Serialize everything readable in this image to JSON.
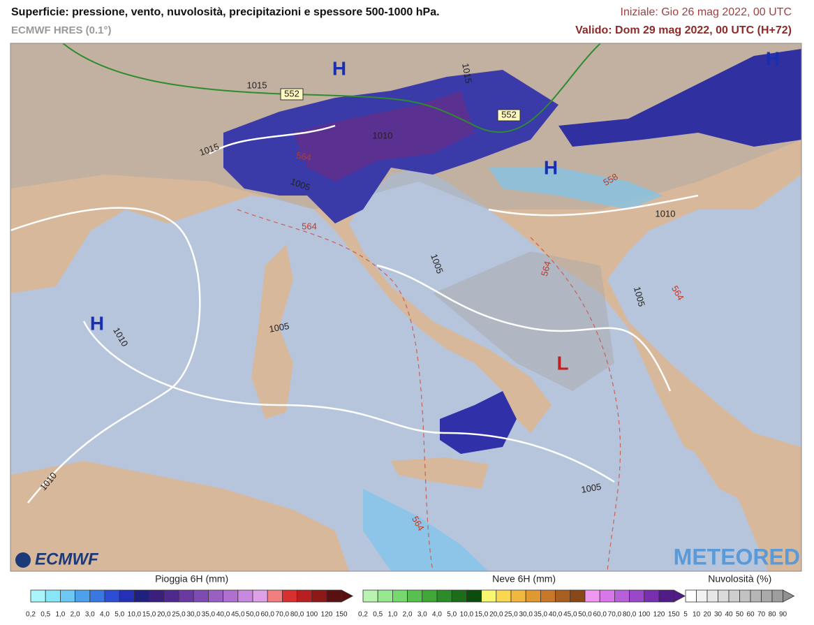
{
  "header": {
    "title": "Superficie: pressione, vento, nuvolosità, precipitazioni e spessore 500-1000 hPa.",
    "model": "ECMWF HRES (0.1°)",
    "initial": "Iniziale: Gio 26 mag 2022, 00 UTC",
    "valid": "Valido: Dom 29 mag 2022, 00 UTC (H+72)"
  },
  "map_labels": {
    "centers": [
      "H",
      "H",
      "H",
      "H",
      "L"
    ],
    "isobars": [
      "1015",
      "1010",
      "1015",
      "1005",
      "1010",
      "1005",
      "1005",
      "1010",
      "1005",
      "1005",
      "1010",
      "1015"
    ],
    "thickness": [
      "564",
      "564",
      "558",
      "564",
      "564",
      "564",
      "552",
      "552"
    ]
  },
  "logos": {
    "left": "ECMWF",
    "right": "METEORED"
  },
  "legends": [
    {
      "title": "Pioggia 6H (mm)",
      "labels": [
        "0,2",
        "0,5",
        "1,0",
        "2,0",
        "3,0",
        "4,0",
        "5,0",
        "10,0",
        "15,0",
        "20,0",
        "25,0",
        "30,0",
        "35,0",
        "40,0",
        "45,0",
        "50,0",
        "60,0",
        "70,0",
        "80,0",
        "100",
        "120",
        "150"
      ],
      "colors": [
        "#a9f5fa",
        "#87e6f7",
        "#6cc8f0",
        "#4ea0ea",
        "#3a78e0",
        "#2c4ed4",
        "#2430b8",
        "#20207e",
        "#3a1f7c",
        "#4f2a8e",
        "#6a3aa0",
        "#7e4cb0",
        "#9860c0",
        "#b070d0",
        "#c888e0",
        "#e0a0e8",
        "#f08080",
        "#d83030",
        "#b82020",
        "#8c1818",
        "#5a1010"
      ]
    },
    {
      "title": "Neve 6H (mm)",
      "labels": [
        "0,2",
        "0,5",
        "1,0",
        "2,0",
        "3,0",
        "4,0",
        "5,0",
        "10,0",
        "15,0",
        "20,0",
        "25,0",
        "30,0",
        "35,0",
        "40,0",
        "45,0",
        "50,0",
        "60,0",
        "70,0",
        "80,0",
        "100",
        "120",
        "150"
      ],
      "colors": [
        "#b8f4b0",
        "#98e890",
        "#78d870",
        "#58c050",
        "#40a838",
        "#2c8c28",
        "#1c6c18",
        "#0c4c0c",
        "#f8f870",
        "#f8d850",
        "#f0b840",
        "#e09830",
        "#c87828",
        "#a86020",
        "#884818",
        "#f098f0",
        "#d878e8",
        "#b860d8",
        "#9848c8",
        "#7830b0",
        "#501c88"
      ]
    },
    {
      "title": "Nuvolosità (%)",
      "labels": [
        "5",
        "10",
        "20",
        "30",
        "40",
        "50",
        "60",
        "70",
        "80",
        "90"
      ],
      "colors": [
        "#ffffff",
        "#f2f2f2",
        "#e6e6e6",
        "#dadada",
        "#cecece",
        "#c2c2c2",
        "#b6b6b6",
        "#aaaaaa",
        "#9e9e9e"
      ]
    }
  ]
}
